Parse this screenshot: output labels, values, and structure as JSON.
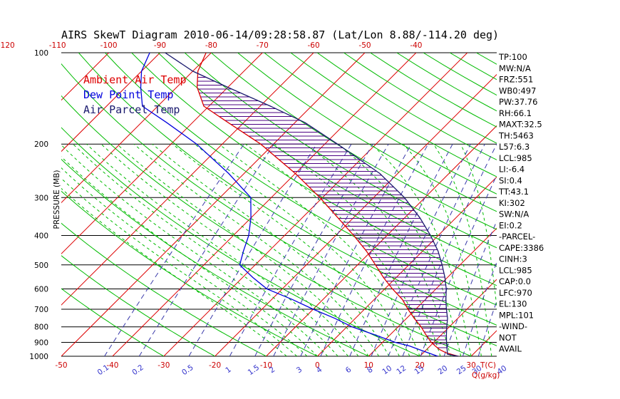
{
  "title": "AIRS SkewT Diagram 2010-06-14/09:28:58.87 (Lat/Lon 8.88/-114.20 deg)",
  "colors": {
    "ambient": "#dd0000",
    "dewpoint": "#0000dd",
    "parcel": "#1a1a6e",
    "hatch": "#4b0082",
    "isotherm": "#dd0000",
    "dry_adiabat": "#00bb00",
    "moist_adiabat": "#00bb00",
    "mixing_ratio": "#3a3aaa",
    "isobar": "#000000"
  },
  "legend": [
    {
      "label": "Ambient Air Temp",
      "color": "#dd0000"
    },
    {
      "label": "Dew Point Temp",
      "color": "#0000dd"
    },
    {
      "label": "Air Parcel Temp",
      "color": "#1a1a6e"
    }
  ],
  "indices": [
    "TP:100",
    "MW:N/A",
    "FRZ:551",
    "WB0:497",
    "PW:37.76",
    "RH:66.1",
    "MAXT:32.5",
    "TH:5463",
    "L57:6.3",
    "LCL:985",
    "LI:-6.4",
    "SI:0.4",
    "TT:43.1",
    "KI:302",
    "SW:N/A",
    "EI:0.2",
    "-PARCEL-",
    "CAPE:3386",
    "CINH:3",
    "LCL:985",
    "CAP:0.0",
    "LFC:970",
    "EL:130",
    "MPL:101",
    "-WIND-",
    "NOT",
    "AVAIL"
  ],
  "chart_data": {
    "type": "line",
    "title": "AIRS SkewT Diagram 2010-06-14/09:28:58.87 (Lat/Lon 8.88/-114.20 deg)",
    "ylabel": "PRESSURE (MB)",
    "xlabel": "T(C)",
    "mixing_label": "Q(g/kg)",
    "y_log_scale": true,
    "ylim": [
      1000,
      100
    ],
    "pressure_levels": [
      100,
      200,
      300,
      400,
      500,
      600,
      700,
      800,
      900,
      1000
    ],
    "pressure_labels": [
      "100",
      "200",
      "300",
      "400",
      "500",
      "600",
      "700",
      "800",
      "900",
      "1000"
    ],
    "bottom_temp_ticks": [
      -50,
      -40,
      -30,
      -20,
      -10,
      0,
      10,
      20,
      30
    ],
    "bottom_temp_labels": [
      "-50",
      "-40",
      "-30",
      "-20",
      "-10",
      "0",
      "10",
      "20",
      "30"
    ],
    "top_temp_ticks": [
      -120,
      -110,
      -100,
      -90,
      -80,
      -70,
      -60,
      -50,
      -40
    ],
    "top_temp_labels": [
      "-120",
      "-110",
      "-100",
      "-90",
      "-80",
      "-70",
      "-60",
      "-50",
      "-40"
    ],
    "mixing_ratios": [
      0.1,
      0.2,
      0.5,
      1,
      1.5,
      2,
      3,
      4,
      6,
      8,
      10,
      12,
      15,
      20,
      25,
      30,
      40
    ],
    "mixing_ratio_labels": [
      "0.1",
      "0.2",
      "0.5",
      "1",
      "1.5",
      "2",
      "3",
      "4",
      "6",
      "8",
      "10",
      "12",
      "15",
      "20",
      "25",
      "30",
      "40"
    ],
    "series": [
      {
        "name": "Ambient Air Temp",
        "points": [
          [
            1000,
            27.5
          ],
          [
            975,
            24.5
          ],
          [
            950,
            22.5
          ],
          [
            925,
            21
          ],
          [
            900,
            19.5
          ],
          [
            850,
            17
          ],
          [
            800,
            14.5
          ],
          [
            750,
            11.5
          ],
          [
            700,
            8.5
          ],
          [
            650,
            5.5
          ],
          [
            600,
            1.5
          ],
          [
            550,
            -2.5
          ],
          [
            500,
            -6.5
          ],
          [
            450,
            -11
          ],
          [
            400,
            -16.5
          ],
          [
            350,
            -23
          ],
          [
            300,
            -30.5
          ],
          [
            250,
            -40
          ],
          [
            200,
            -52.5
          ],
          [
            170,
            -63
          ],
          [
            150,
            -71
          ],
          [
            130,
            -76
          ],
          [
            115,
            -79
          ],
          [
            100,
            -81
          ]
        ]
      },
      {
        "name": "Dew Point Temp",
        "points": [
          [
            1000,
            23.5
          ],
          [
            975,
            21
          ],
          [
            950,
            18.5
          ],
          [
            925,
            16
          ],
          [
            900,
            12.5
          ],
          [
            850,
            7
          ],
          [
            800,
            1
          ],
          [
            750,
            -4
          ],
          [
            700,
            -10
          ],
          [
            650,
            -16
          ],
          [
            600,
            -23
          ],
          [
            550,
            -28
          ],
          [
            500,
            -33
          ],
          [
            450,
            -35
          ],
          [
            400,
            -37
          ],
          [
            350,
            -40
          ],
          [
            300,
            -44
          ],
          [
            250,
            -53
          ],
          [
            200,
            -65
          ],
          [
            170,
            -75
          ],
          [
            150,
            -83
          ],
          [
            130,
            -87
          ],
          [
            115,
            -90
          ],
          [
            100,
            -92
          ]
        ]
      },
      {
        "name": "Air Parcel Temp",
        "points": [
          [
            1000,
            27.5
          ],
          [
            985,
            25
          ],
          [
            950,
            24
          ],
          [
            900,
            22.5
          ],
          [
            850,
            21
          ],
          [
            800,
            19.5
          ],
          [
            750,
            18
          ],
          [
            700,
            16
          ],
          [
            650,
            14
          ],
          [
            600,
            12
          ],
          [
            550,
            9.5
          ],
          [
            500,
            6.5
          ],
          [
            450,
            3
          ],
          [
            400,
            -1.5
          ],
          [
            350,
            -7
          ],
          [
            300,
            -14
          ],
          [
            250,
            -23.5
          ],
          [
            200,
            -37.5
          ],
          [
            170,
            -48
          ],
          [
            150,
            -58
          ],
          [
            130,
            -70
          ],
          [
            115,
            -80
          ],
          [
            100,
            -89
          ]
        ]
      }
    ]
  }
}
